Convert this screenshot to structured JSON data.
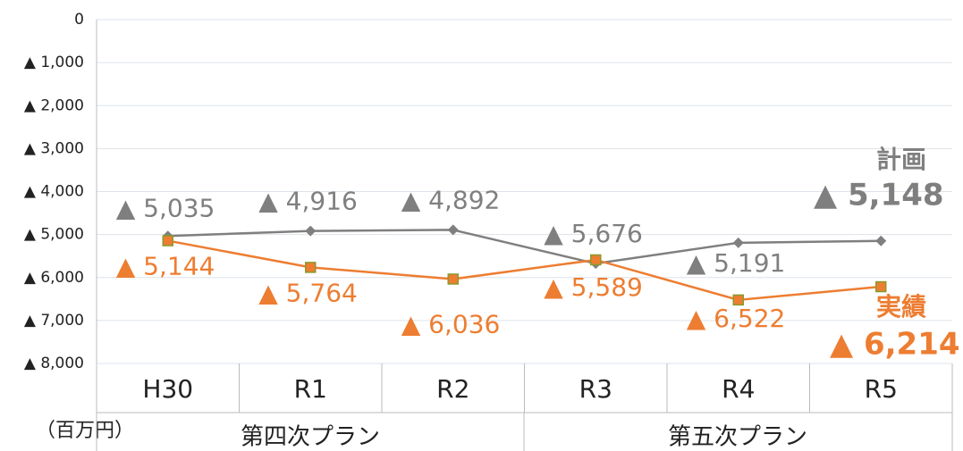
{
  "chart_data": {
    "type": "line",
    "categories": [
      "H30",
      "R1",
      "R2",
      "R3",
      "R4",
      "R5"
    ],
    "groups": [
      "第四次プラン",
      "第五次プラン"
    ],
    "unit_label": "（百万円）",
    "series": [
      {
        "name": "計画",
        "color": "#7f7f7f",
        "marker": "diamond",
        "values": [
          -5035,
          -4916,
          -4892,
          -5676,
          -5191,
          -5148
        ],
        "value_labels": [
          "▲ 5,035",
          "▲ 4,916",
          "▲ 4,892",
          "▲ 5,676",
          "▲ 5,191",
          "▲ 5,148"
        ]
      },
      {
        "name": "実績",
        "color": "#ed7d31",
        "marker": "square",
        "values": [
          -5144,
          -5764,
          -6036,
          -5589,
          -6522,
          -6214
        ],
        "value_labels": [
          "▲ 5,144",
          "▲ 5,764",
          "▲ 6,036",
          "▲ 5,589",
          "▲ 6,522",
          "▲ 6,214"
        ]
      }
    ],
    "ylim": [
      -8000,
      0
    ],
    "yticks": [
      {
        "value": 0,
        "label": "0"
      },
      {
        "value": -1000,
        "label": "▲ 1,000"
      },
      {
        "value": -2000,
        "label": "▲ 2,000"
      },
      {
        "value": -3000,
        "label": "▲ 3,000"
      },
      {
        "value": -4000,
        "label": "▲ 4,000"
      },
      {
        "value": -5000,
        "label": "▲ 5,000"
      },
      {
        "value": -6000,
        "label": "▲ 6,000"
      },
      {
        "value": -7000,
        "label": "▲ 7,000"
      },
      {
        "value": -8000,
        "label": "▲ 8,000"
      }
    ],
    "grid": true
  }
}
